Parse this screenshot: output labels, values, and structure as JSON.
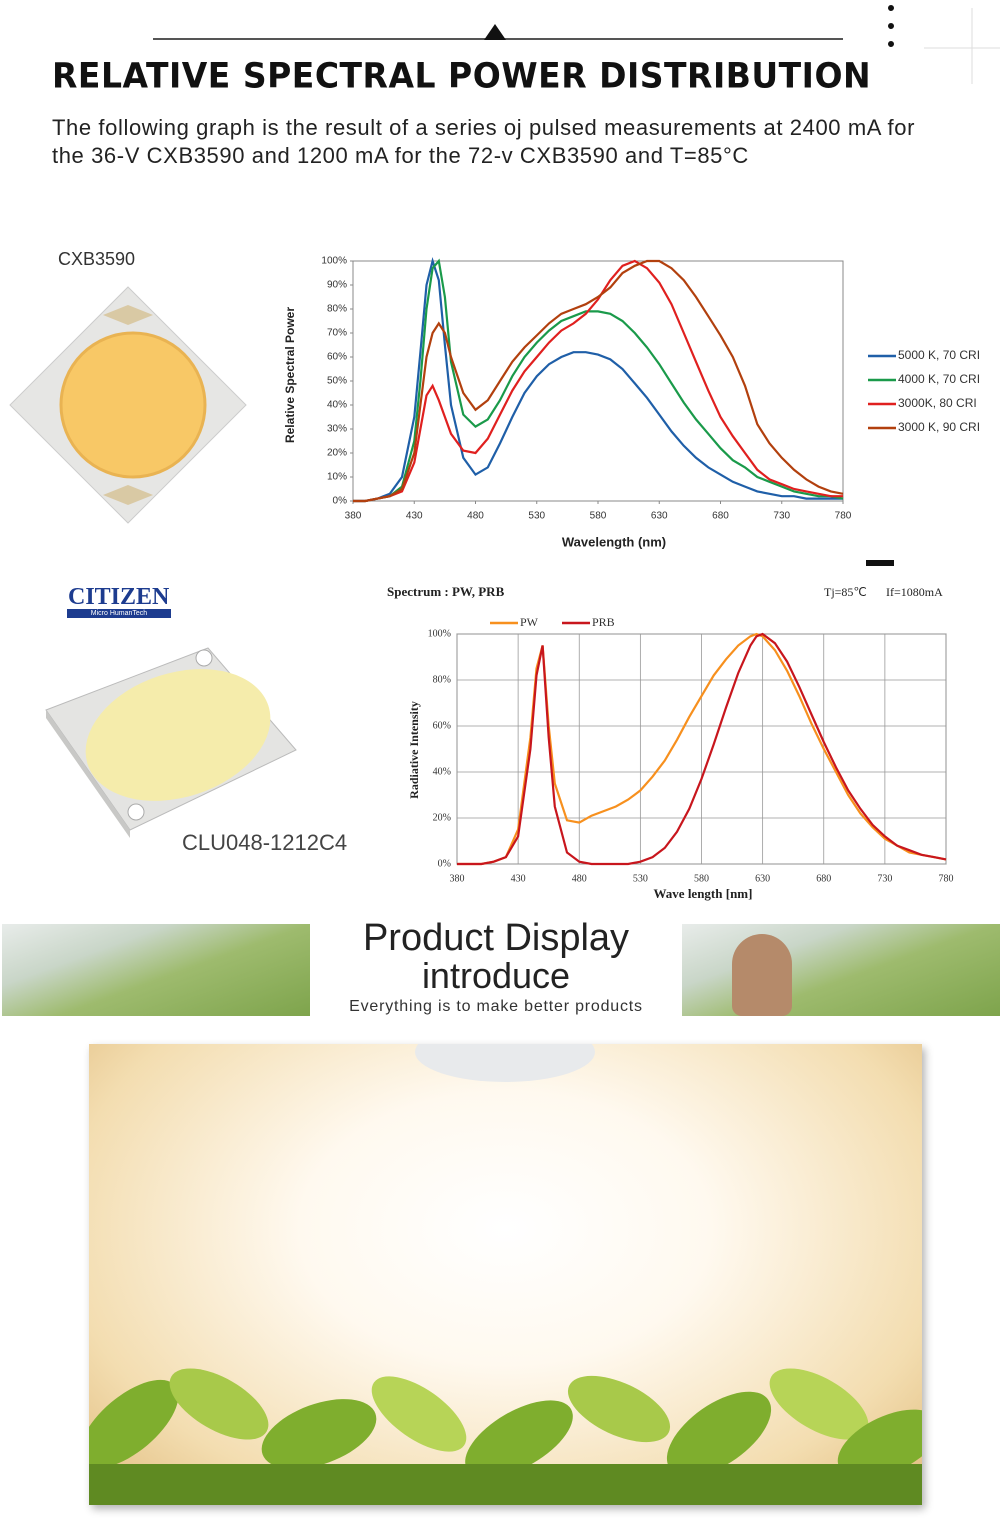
{
  "header": {
    "title": "RELATIVE SPECTRAL POWER DISTRIBUTION",
    "description": "The following graph is the result of a series oj pulsed measurements at 2400 mA for the 36-V CXB3590 and 1200 mA for the 72-v CXB3590 and T=85°C"
  },
  "products": {
    "first": "CXB3590",
    "brand": "CITIZEN",
    "brand_tagline": "Micro HumanTech",
    "second": "CLU048-1212C4"
  },
  "display": {
    "title": "Product Display",
    "subtitle": "introduce",
    "tagline": "Everything is to make better products"
  },
  "chart_data": [
    {
      "type": "line",
      "y_label": "Relative Spectral Power",
      "x_label": "Wavelength (nm)",
      "legend": "right",
      "grid": false,
      "x": [
        380,
        390,
        400,
        410,
        420,
        430,
        435,
        440,
        445,
        450,
        455,
        460,
        470,
        480,
        490,
        500,
        510,
        520,
        530,
        540,
        550,
        560,
        570,
        580,
        590,
        600,
        610,
        620,
        630,
        640,
        650,
        660,
        670,
        680,
        690,
        700,
        710,
        720,
        730,
        740,
        750,
        760,
        770,
        780
      ],
      "xlim": [
        380,
        780
      ],
      "xticks": [
        380,
        430,
        480,
        530,
        580,
        630,
        680,
        730,
        780
      ],
      "ylim": [
        0,
        100
      ],
      "yticks": [
        {
          "value": 0,
          "label": "0%"
        },
        {
          "value": 10,
          "label": "10%"
        },
        {
          "value": 20,
          "label": "20%"
        },
        {
          "value": 30,
          "label": "30%"
        },
        {
          "value": 40,
          "label": "40%"
        },
        {
          "value": 50,
          "label": "50%"
        },
        {
          "value": 60,
          "label": "60%"
        },
        {
          "value": 70,
          "label": "70%"
        },
        {
          "value": 80,
          "label": "80%"
        },
        {
          "value": 90,
          "label": "90%"
        },
        {
          "value": 100,
          "label": "100%"
        }
      ],
      "series": [
        {
          "name": "5000 K, 70 CRI",
          "color": "#1f5fa8",
          "values": [
            0,
            0,
            1,
            3,
            10,
            35,
            62,
            90,
            100,
            92,
            65,
            40,
            18,
            11,
            14,
            24,
            35,
            45,
            52,
            57,
            60,
            62,
            62,
            61,
            59,
            55,
            49,
            43,
            36,
            29,
            23,
            18,
            14,
            11,
            8,
            6,
            4,
            3,
            2,
            2,
            1,
            1,
            1,
            1
          ]
        },
        {
          "name": "4000 K, 70 CRI",
          "color": "#1a9a4a",
          "values": [
            0,
            0,
            1,
            2,
            6,
            25,
            50,
            80,
            97,
            100,
            85,
            58,
            36,
            31,
            34,
            42,
            52,
            60,
            66,
            71,
            75,
            77,
            79,
            79,
            78,
            75,
            70,
            64,
            57,
            49,
            41,
            34,
            28,
            22,
            17,
            14,
            10,
            8,
            6,
            4,
            3,
            2,
            2,
            1
          ]
        },
        {
          "name": "3000K, 80 CRI",
          "color": "#e0201f",
          "values": [
            0,
            0,
            1,
            2,
            4,
            16,
            30,
            44,
            48,
            42,
            35,
            28,
            21,
            20,
            26,
            36,
            46,
            54,
            60,
            66,
            71,
            74,
            78,
            84,
            92,
            98,
            100,
            97,
            91,
            82,
            70,
            58,
            46,
            35,
            27,
            20,
            13,
            9,
            7,
            5,
            4,
            3,
            2,
            2
          ]
        },
        {
          "name": "3000 K, 90 CRI",
          "color": "#b2400e",
          "values": [
            0,
            0,
            1,
            2,
            5,
            20,
            40,
            60,
            70,
            74,
            70,
            60,
            45,
            38,
            42,
            50,
            58,
            64,
            69,
            74,
            78,
            80,
            82,
            85,
            89,
            95,
            98,
            100,
            100,
            97,
            92,
            85,
            77,
            69,
            60,
            48,
            32,
            24,
            18,
            13,
            9,
            6,
            4,
            3
          ]
        }
      ]
    },
    {
      "type": "line",
      "title": "Spectrum : PW, PRB",
      "notes": [
        "Tj=85℃",
        "If=1080mA"
      ],
      "y_label": "Radiative Intensity",
      "x_label": "Wave length [nm]",
      "legend": "top",
      "grid": true,
      "x": [
        380,
        400,
        410,
        420,
        430,
        440,
        445,
        450,
        455,
        460,
        470,
        480,
        490,
        500,
        510,
        520,
        530,
        540,
        550,
        560,
        570,
        580,
        590,
        600,
        610,
        620,
        625,
        630,
        640,
        650,
        660,
        670,
        680,
        690,
        700,
        710,
        720,
        730,
        740,
        750,
        760,
        770,
        780
      ],
      "xlim": [
        380,
        780
      ],
      "xticks": [
        380,
        430,
        480,
        530,
        580,
        630,
        680,
        730,
        780
      ],
      "ylim": [
        0,
        100
      ],
      "yticks": [
        {
          "value": 0,
          "label": "0%"
        },
        {
          "value": 20,
          "label": "20%"
        },
        {
          "value": 40,
          "label": "40%"
        },
        {
          "value": 60,
          "label": "60%"
        },
        {
          "value": 80,
          "label": "80%"
        },
        {
          "value": 100,
          "label": "100%"
        }
      ],
      "series": [
        {
          "name": "PW",
          "color": "#f7901e",
          "values": [
            0,
            0,
            1,
            3,
            15,
            55,
            85,
            95,
            60,
            35,
            19,
            18,
            21,
            23,
            25,
            28,
            32,
            38,
            45,
            54,
            64,
            73,
            82,
            89,
            95,
            99,
            100,
            99,
            93,
            84,
            73,
            61,
            50,
            40,
            30,
            22,
            16,
            11,
            8,
            5,
            4,
            3,
            2
          ]
        },
        {
          "name": "PRB",
          "color": "#c8161d",
          "values": [
            0,
            0,
            1,
            3,
            12,
            50,
            82,
            95,
            55,
            25,
            5,
            1,
            0,
            0,
            0,
            0,
            1,
            3,
            7,
            14,
            24,
            37,
            52,
            68,
            83,
            95,
            99,
            100,
            96,
            88,
            77,
            65,
            53,
            42,
            32,
            24,
            17,
            12,
            8,
            6,
            4,
            3,
            2
          ]
        }
      ]
    }
  ]
}
